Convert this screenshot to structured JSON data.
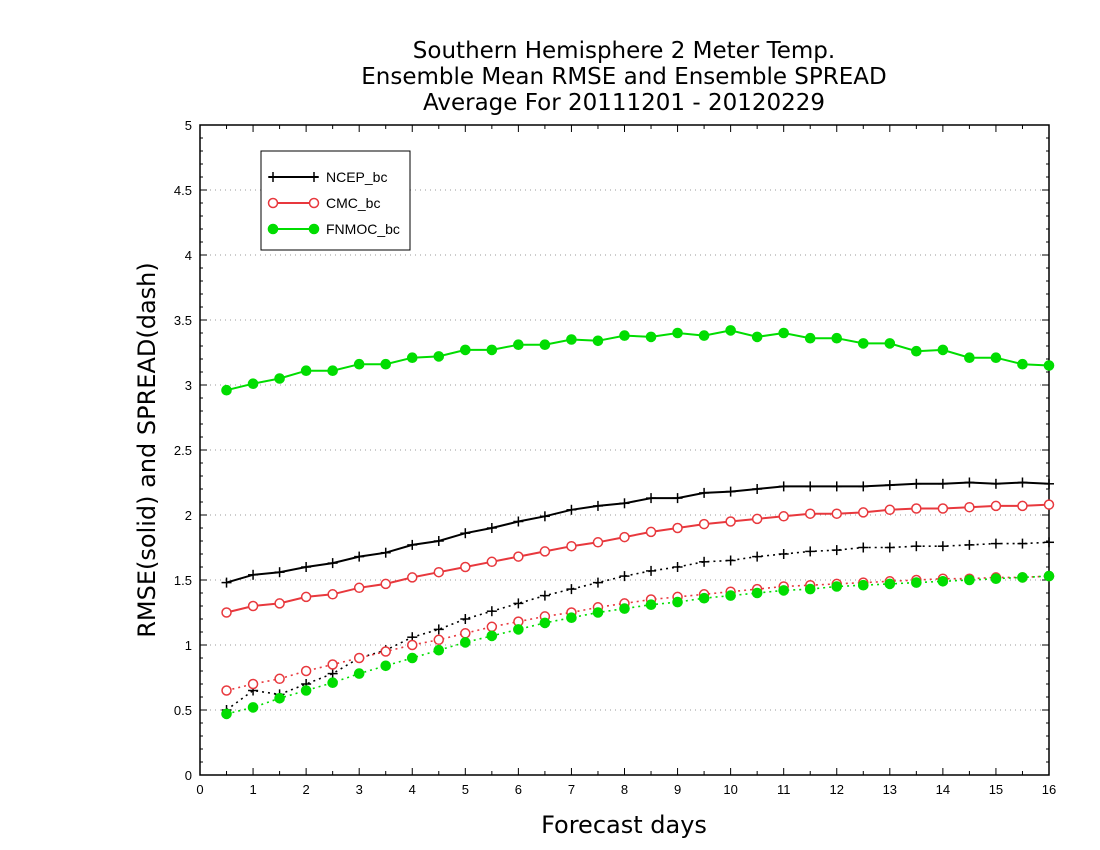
{
  "chart_data": {
    "type": "line",
    "title_lines": [
      "Southern Hemisphere 2 Meter Temp.",
      "Ensemble Mean RMSE and Ensemble SPREAD",
      "Average For 20111201 - 20120229"
    ],
    "xlabel": "Forecast days",
    "ylabel": "RMSE(solid) and SPREAD(dash)",
    "xlim": [
      0,
      16
    ],
    "ylim": [
      0,
      5
    ],
    "xticks": [
      "0",
      "1",
      "2",
      "3",
      "4",
      "5",
      "6",
      "7",
      "8",
      "9",
      "10",
      "11",
      "12",
      "13",
      "14",
      "15",
      "16"
    ],
    "yticks": [
      "0",
      "0.5",
      "1",
      "1.5",
      "2",
      "2.5",
      "3",
      "3.5",
      "4",
      "4.5",
      "5"
    ],
    "grid": "horizontal dotted",
    "legend_position": "top-left",
    "x": [
      0.5,
      1,
      1.5,
      2,
      2.5,
      3,
      3.5,
      4,
      4.5,
      5,
      5.5,
      6,
      6.5,
      7,
      7.5,
      8,
      8.5,
      9,
      9.5,
      10,
      10.5,
      11,
      11.5,
      12,
      12.5,
      13,
      13.5,
      14,
      14.5,
      15,
      15.5,
      16
    ],
    "series": [
      {
        "name": "NCEP_bc",
        "color": "#000000",
        "marker": "plus",
        "rmse": [
          1.48,
          1.54,
          1.56,
          1.6,
          1.63,
          1.68,
          1.71,
          1.77,
          1.8,
          1.86,
          1.9,
          1.95,
          1.99,
          2.04,
          2.07,
          2.09,
          2.13,
          2.13,
          2.17,
          2.18,
          2.2,
          2.22,
          2.22,
          2.22,
          2.22,
          2.23,
          2.24,
          2.24,
          2.25,
          2.24,
          2.25,
          2.24
        ],
        "spread": [
          0.5,
          0.65,
          0.62,
          0.7,
          0.78,
          0.9,
          0.96,
          1.06,
          1.12,
          1.2,
          1.26,
          1.32,
          1.38,
          1.43,
          1.48,
          1.53,
          1.57,
          1.6,
          1.64,
          1.65,
          1.68,
          1.7,
          1.72,
          1.73,
          1.75,
          1.75,
          1.76,
          1.76,
          1.77,
          1.78,
          1.78,
          1.79
        ]
      },
      {
        "name": "CMC_bc",
        "color": "#e8383d",
        "marker": "open-circle",
        "rmse": [
          1.25,
          1.3,
          1.32,
          1.37,
          1.39,
          1.44,
          1.47,
          1.52,
          1.56,
          1.6,
          1.64,
          1.68,
          1.72,
          1.76,
          1.79,
          1.83,
          1.87,
          1.9,
          1.93,
          1.95,
          1.97,
          1.99,
          2.01,
          2.01,
          2.02,
          2.04,
          2.05,
          2.05,
          2.06,
          2.07,
          2.07,
          2.08
        ],
        "spread": [
          0.65,
          0.7,
          0.74,
          0.8,
          0.85,
          0.9,
          0.95,
          1.0,
          1.04,
          1.09,
          1.14,
          1.18,
          1.22,
          1.25,
          1.29,
          1.32,
          1.35,
          1.37,
          1.39,
          1.41,
          1.43,
          1.45,
          1.46,
          1.47,
          1.48,
          1.49,
          1.5,
          1.51,
          1.51,
          1.52,
          1.52,
          1.53
        ]
      },
      {
        "name": "FNMOC_bc",
        "color": "#00dd00",
        "marker": "filled-circle",
        "rmse": [
          2.96,
          3.01,
          3.05,
          3.11,
          3.11,
          3.16,
          3.16,
          3.21,
          3.22,
          3.27,
          3.27,
          3.31,
          3.31,
          3.35,
          3.34,
          3.38,
          3.37,
          3.4,
          3.38,
          3.42,
          3.37,
          3.4,
          3.36,
          3.36,
          3.32,
          3.32,
          3.26,
          3.27,
          3.21,
          3.21,
          3.16,
          3.15
        ],
        "spread": [
          0.47,
          0.52,
          0.59,
          0.65,
          0.71,
          0.78,
          0.84,
          0.9,
          0.96,
          1.02,
          1.07,
          1.12,
          1.17,
          1.21,
          1.25,
          1.28,
          1.31,
          1.33,
          1.36,
          1.38,
          1.4,
          1.42,
          1.43,
          1.45,
          1.46,
          1.47,
          1.48,
          1.49,
          1.5,
          1.51,
          1.52,
          1.53
        ]
      }
    ]
  }
}
